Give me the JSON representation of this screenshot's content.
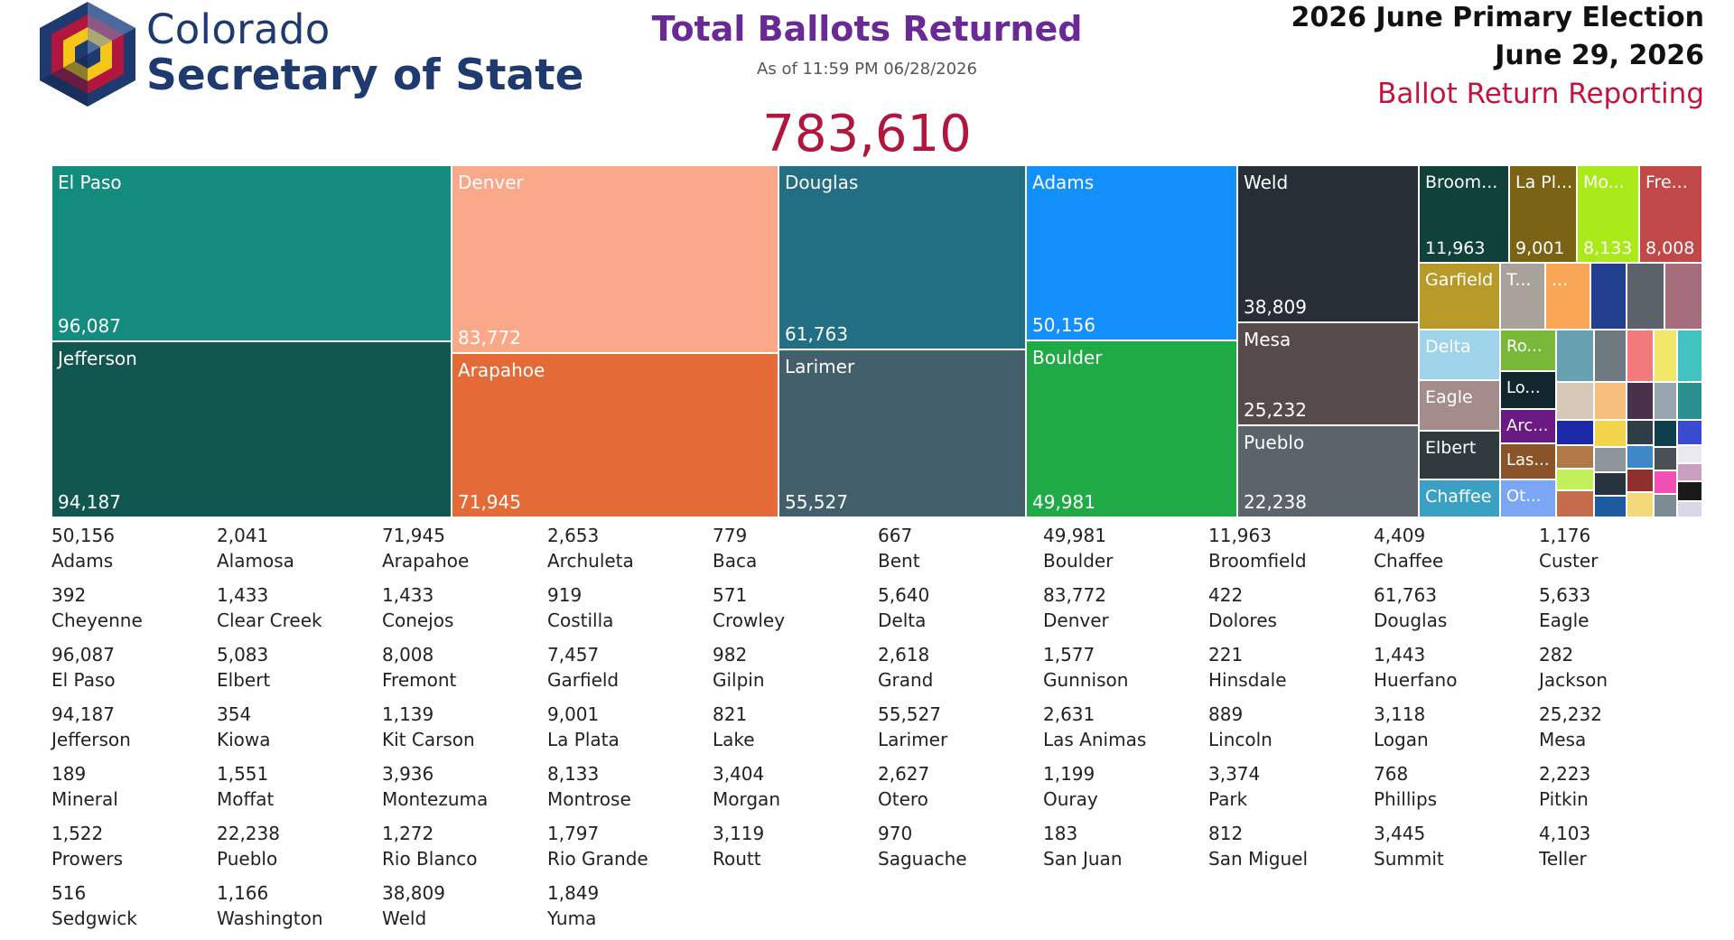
{
  "brand": {
    "line1": "Colorado",
    "line2": "Secretary of State"
  },
  "header": {
    "title": "Total Ballots Returned",
    "as_of": "As of 11:59 PM 06/28/2026",
    "total": "783,610",
    "election_name": "2026 June Primary Election",
    "election_date": "June 29, 2026",
    "report_type": "Ballot Return Reporting"
  },
  "colors": {
    "title": "#6a2a96",
    "total": "#b0163e",
    "brand": "#1f3a6e",
    "report": "#c0163e"
  },
  "chart_data": {
    "type": "treemap",
    "title": "Total Ballots Returned",
    "total": 783610,
    "tiles": [
      {
        "name": "El Paso",
        "label": "El Paso",
        "value": 96087,
        "value_label": "96,087",
        "color": "#138c7e"
      },
      {
        "name": "Jefferson",
        "label": "Jefferson",
        "value": 94187,
        "value_label": "94,187",
        "color": "#12574f"
      },
      {
        "name": "Denver",
        "label": "Denver",
        "value": 83772,
        "value_label": "83,772",
        "color": "#f9a88a"
      },
      {
        "name": "Arapahoe",
        "label": "Arapahoe",
        "value": 71945,
        "value_label": "71,945",
        "color": "#e46b38"
      },
      {
        "name": "Douglas",
        "label": "Douglas",
        "value": 61763,
        "value_label": "61,763",
        "color": "#226f83"
      },
      {
        "name": "Larimer",
        "label": "Larimer",
        "value": 55527,
        "value_label": "55,527",
        "color": "#425f6b"
      },
      {
        "name": "Adams",
        "label": "Adams",
        "value": 50156,
        "value_label": "50,156",
        "color": "#1390fb"
      },
      {
        "name": "Boulder",
        "label": "Boulder",
        "value": 49981,
        "value_label": "49,981",
        "color": "#20aa45"
      },
      {
        "name": "Weld",
        "label": "Weld",
        "value": 38809,
        "value_label": "38,809",
        "color": "#272e36"
      },
      {
        "name": "Mesa",
        "label": "Mesa",
        "value": 25232,
        "value_label": "25,232",
        "color": "#574a4a"
      },
      {
        "name": "Pueblo",
        "label": "Pueblo",
        "value": 22238,
        "value_label": "22,238",
        "color": "#5d636b"
      },
      {
        "name": "Broomfield",
        "label": "Broom...",
        "value": 11963,
        "value_label": "11,963",
        "color": "#10423b"
      },
      {
        "name": "La Plata",
        "label": "La Pl...",
        "value": 9001,
        "value_label": "9,001",
        "color": "#7a6315"
      },
      {
        "name": "Montrose",
        "label": "Mo...",
        "value": 8133,
        "value_label": "8,133",
        "color": "#aaea1a"
      },
      {
        "name": "Fremont",
        "label": "Fre...",
        "value": 8008,
        "value_label": "8,008",
        "color": "#c04848"
      },
      {
        "name": "Garfield",
        "label": "Garfield",
        "value": 7457,
        "color": "#b89a2a"
      },
      {
        "name": "Teller",
        "label": "T...",
        "value": 4103,
        "color": "#a8a29a"
      },
      {
        "name": "Conejos",
        "label": "...",
        "value": 1433,
        "color": "#f9a656"
      },
      {
        "name": "Delta",
        "label": "Delta",
        "value": 5640,
        "color": "#9fd3ea"
      },
      {
        "name": "Eagle",
        "label": "Eagle",
        "value": 5633,
        "color": "#a48c8c"
      },
      {
        "name": "Elbert",
        "label": "Elbert",
        "value": 5083,
        "color": "#303a3f"
      },
      {
        "name": "Chaffee",
        "label": "Chaffee",
        "value": 4409,
        "color": "#3aa0c4"
      },
      {
        "name": "Routt",
        "label": "Ro...",
        "value": 3119,
        "color": "#7ab83a"
      },
      {
        "name": "Logan",
        "label": "Lo...",
        "value": 3118,
        "color": "#12262d"
      },
      {
        "name": "Archuleta",
        "label": "Arc...",
        "value": 2653,
        "color": "#6b1a84"
      },
      {
        "name": "Las Animas",
        "label": "Las...",
        "value": 2631,
        "color": "#8a5428"
      },
      {
        "name": "Otero",
        "label": "Ot...",
        "value": 2627,
        "color": "#7aa6f5"
      }
    ],
    "small_tile_colors": [
      "#233f8f",
      "#5b6269",
      "#a66d7c",
      "#67a0b0",
      "#d8c8b8",
      "#1a2aa8",
      "#b07a46",
      "#c2ef5a",
      "#c46d4c",
      "#6f7a80",
      "#f7bf7e",
      "#f1d44c",
      "#8d969b",
      "#26343e",
      "#1e5aa0",
      "#f27a7a",
      "#493248",
      "#2f3d45",
      "#3f88c6",
      "#8e3030",
      "#f3d97a",
      "#f0e66a",
      "#97a6b0",
      "#0f3f4d",
      "#4a5056",
      "#f04fb3",
      "#7c8c94",
      "#43c2c2",
      "#2b8f8f",
      "#3a4bd0",
      "#e9e9ee",
      "#c9a0c0",
      "#1a1a1a",
      "#d8d8e8",
      "#7a3a7a",
      "#3f7ad0",
      "#25303a",
      "#5a3e8a",
      "#2f6fcf",
      "#4fa0e0"
    ]
  },
  "county_table": [
    {
      "value": "50,156",
      "name": "Adams"
    },
    {
      "value": "2,041",
      "name": "Alamosa"
    },
    {
      "value": "71,945",
      "name": "Arapahoe"
    },
    {
      "value": "2,653",
      "name": "Archuleta"
    },
    {
      "value": "779",
      "name": "Baca"
    },
    {
      "value": "667",
      "name": "Bent"
    },
    {
      "value": "49,981",
      "name": "Boulder"
    },
    {
      "value": "11,963",
      "name": "Broomfield"
    },
    {
      "value": "4,409",
      "name": "Chaffee"
    },
    {
      "value": "1,176",
      "name": "Custer"
    },
    {
      "value": "392",
      "name": "Cheyenne"
    },
    {
      "value": "1,433",
      "name": "Clear Creek"
    },
    {
      "value": "1,433",
      "name": "Conejos"
    },
    {
      "value": "919",
      "name": "Costilla"
    },
    {
      "value": "571",
      "name": "Crowley"
    },
    {
      "value": "5,640",
      "name": "Delta"
    },
    {
      "value": "83,772",
      "name": "Denver"
    },
    {
      "value": "422",
      "name": "Dolores"
    },
    {
      "value": "61,763",
      "name": "Douglas"
    },
    {
      "value": "5,633",
      "name": "Eagle"
    },
    {
      "value": "96,087",
      "name": "El Paso"
    },
    {
      "value": "5,083",
      "name": "Elbert"
    },
    {
      "value": "8,008",
      "name": "Fremont"
    },
    {
      "value": "7,457",
      "name": "Garfield"
    },
    {
      "value": "982",
      "name": "Gilpin"
    },
    {
      "value": "2,618",
      "name": "Grand"
    },
    {
      "value": "1,577",
      "name": "Gunnison"
    },
    {
      "value": "221",
      "name": "Hinsdale"
    },
    {
      "value": "1,443",
      "name": "Huerfano"
    },
    {
      "value": "282",
      "name": "Jackson"
    },
    {
      "value": "94,187",
      "name": "Jefferson"
    },
    {
      "value": "354",
      "name": "Kiowa"
    },
    {
      "value": "1,139",
      "name": "Kit Carson"
    },
    {
      "value": "9,001",
      "name": "La Plata"
    },
    {
      "value": "821",
      "name": "Lake"
    },
    {
      "value": "55,527",
      "name": "Larimer"
    },
    {
      "value": "2,631",
      "name": "Las Animas"
    },
    {
      "value": "889",
      "name": "Lincoln"
    },
    {
      "value": "3,118",
      "name": "Logan"
    },
    {
      "value": "25,232",
      "name": "Mesa"
    },
    {
      "value": "189",
      "name": "Mineral"
    },
    {
      "value": "1,551",
      "name": "Moffat"
    },
    {
      "value": "3,936",
      "name": "Montezuma"
    },
    {
      "value": "8,133",
      "name": "Montrose"
    },
    {
      "value": "3,404",
      "name": "Morgan"
    },
    {
      "value": "2,627",
      "name": "Otero"
    },
    {
      "value": "1,199",
      "name": "Ouray"
    },
    {
      "value": "3,374",
      "name": "Park"
    },
    {
      "value": "768",
      "name": "Phillips"
    },
    {
      "value": "2,223",
      "name": "Pitkin"
    },
    {
      "value": "1,522",
      "name": "Prowers"
    },
    {
      "value": "22,238",
      "name": "Pueblo"
    },
    {
      "value": "1,272",
      "name": "Rio Blanco"
    },
    {
      "value": "1,797",
      "name": "Rio Grande"
    },
    {
      "value": "3,119",
      "name": "Routt"
    },
    {
      "value": "970",
      "name": "Saguache"
    },
    {
      "value": "183",
      "name": "San Juan"
    },
    {
      "value": "812",
      "name": "San Miguel"
    },
    {
      "value": "3,445",
      "name": "Summit"
    },
    {
      "value": "4,103",
      "name": "Teller"
    },
    {
      "value": "516",
      "name": "Sedgwick"
    },
    {
      "value": "1,166",
      "name": "Washington"
    },
    {
      "value": "38,809",
      "name": "Weld"
    },
    {
      "value": "1,849",
      "name": "Yuma"
    }
  ]
}
